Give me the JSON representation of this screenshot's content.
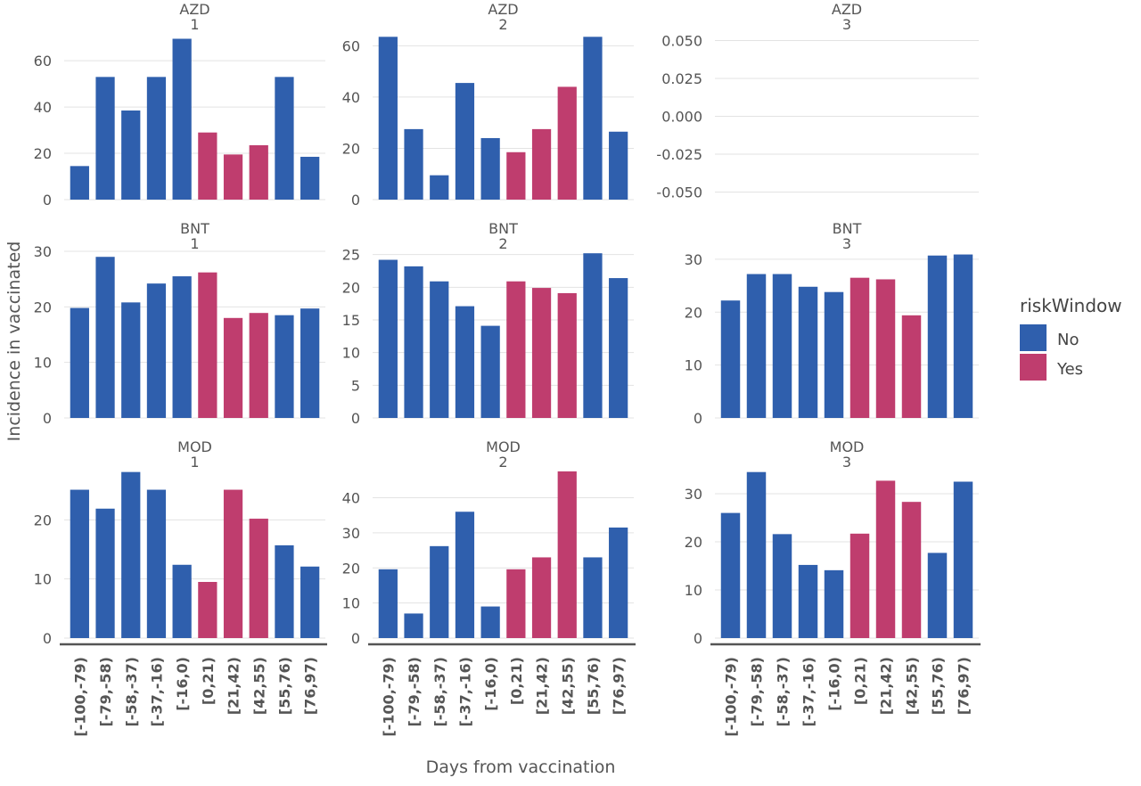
{
  "chart_data": {
    "type": "bar",
    "categories": [
      "[-100,-79)",
      "[-79,-58)",
      "[-58,-37)",
      "[-37,-16)",
      "[-16,0)",
      "[0,21)",
      "[21,42)",
      "[42,55)",
      "[55,76)",
      "[76,97)"
    ],
    "risk_window": [
      "No",
      "No",
      "No",
      "No",
      "No",
      "Yes",
      "Yes",
      "Yes",
      "No",
      "No"
    ],
    "xlabel": "Days from vaccination",
    "ylabel": "Incidence in vaccinated",
    "legend": {
      "title": "riskWindow",
      "position": "right",
      "items": [
        {
          "label": "No",
          "color": "#2f5fad"
        },
        {
          "label": "Yes",
          "color": "#bf3d6e"
        }
      ]
    },
    "panels": [
      {
        "strip": [
          "AZD",
          "1"
        ],
        "values": [
          14.5,
          53,
          38.5,
          53,
          69.5,
          29,
          19.5,
          23.5,
          53,
          18.5
        ],
        "ylim": [
          0,
          72
        ],
        "yticks": [
          "0",
          "20",
          "40",
          "60"
        ],
        "yvals": [
          0,
          20,
          40,
          60
        ]
      },
      {
        "strip": [
          "AZD",
          "2"
        ],
        "values": [
          63.5,
          27.5,
          9.5,
          45.5,
          24,
          18.5,
          27.5,
          44,
          63.5,
          26.5
        ],
        "ylim": [
          0,
          65
        ],
        "yticks": [
          "0",
          "20",
          "40",
          "60"
        ],
        "yvals": [
          0,
          20,
          40,
          60
        ]
      },
      {
        "strip": [
          "AZD",
          "3"
        ],
        "values": [],
        "ylim": [
          -0.055,
          0.055
        ],
        "yticks": [
          "-0.050",
          "-0.025",
          "0.000",
          "0.025",
          "0.050"
        ],
        "yvals": [
          -0.05,
          -0.025,
          0,
          0.025,
          0.05
        ]
      },
      {
        "strip": [
          "BNT",
          "1"
        ],
        "values": [
          19.8,
          29,
          20.8,
          24.2,
          25.5,
          26.2,
          18,
          18.9,
          18.5,
          19.7
        ],
        "ylim": [
          0,
          30
        ],
        "yticks": [
          "0",
          "10",
          "20",
          "30"
        ],
        "yvals": [
          0,
          10,
          20,
          30
        ]
      },
      {
        "strip": [
          "BNT",
          "2"
        ],
        "values": [
          24.2,
          23.2,
          20.9,
          17.1,
          14.1,
          20.9,
          19.9,
          19.1,
          25.2,
          21.4
        ],
        "ylim": [
          0,
          25.5
        ],
        "yticks": [
          "0",
          "5",
          "10",
          "15",
          "20",
          "25"
        ],
        "yvals": [
          0,
          5,
          10,
          15,
          20,
          25
        ]
      },
      {
        "strip": [
          "BNT",
          "3"
        ],
        "values": [
          22.2,
          27.2,
          27.2,
          24.8,
          23.8,
          26.5,
          26.2,
          19.4,
          30.7,
          30.9
        ],
        "ylim": [
          0,
          31.5
        ],
        "yticks": [
          "0",
          "10",
          "20",
          "30"
        ],
        "yvals": [
          0,
          10,
          20,
          30
        ]
      },
      {
        "strip": [
          "MOD",
          "1"
        ],
        "values": [
          25.1,
          21.9,
          28.1,
          25.1,
          12.4,
          9.5,
          25.1,
          20.2,
          15.7,
          12.1
        ],
        "ylim": [
          0,
          28.5
        ],
        "yticks": [
          "0",
          "10",
          "20"
        ],
        "yvals": [
          0,
          10,
          20
        ]
      },
      {
        "strip": [
          "MOD",
          "2"
        ],
        "values": [
          19.6,
          7,
          26.2,
          36,
          9,
          19.6,
          23,
          47.5,
          23,
          31.5
        ],
        "ylim": [
          0,
          48
        ],
        "yticks": [
          "0",
          "10",
          "20",
          "30",
          "40"
        ],
        "yvals": [
          0,
          10,
          20,
          30,
          40
        ]
      },
      {
        "strip": [
          "MOD",
          "3"
        ],
        "values": [
          26,
          34.5,
          21.6,
          15.2,
          14.1,
          21.7,
          32.7,
          28.3,
          17.7,
          32.5
        ],
        "ylim": [
          0,
          35
        ],
        "yticks": [
          "0",
          "10",
          "20",
          "30"
        ],
        "yvals": [
          0,
          10,
          20,
          30
        ]
      }
    ]
  }
}
